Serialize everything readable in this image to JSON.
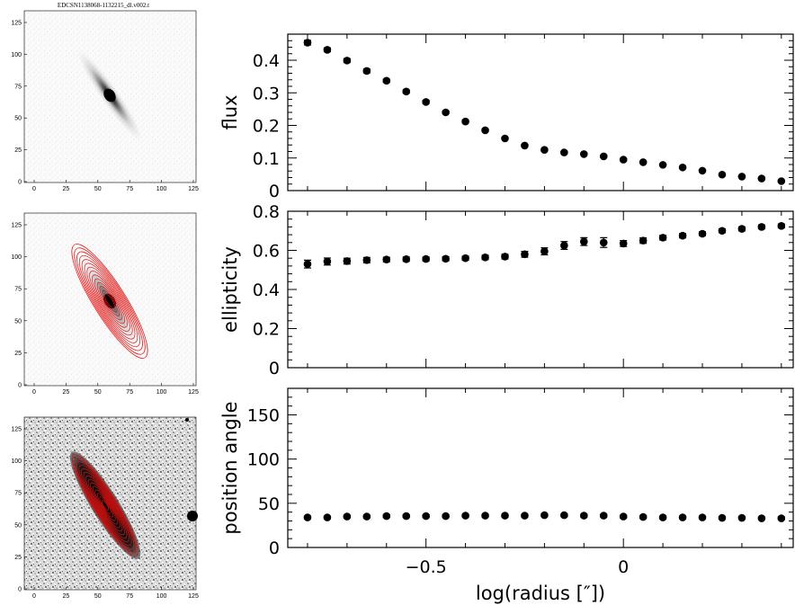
{
  "image_title": "EDCSN1138068-1132215_dl.v002.t",
  "image_panels": [
    {
      "name": "galaxy-image",
      "xticks": [
        "0",
        "25",
        "50",
        "75",
        "100",
        "125"
      ],
      "yticks": [
        "0",
        "25",
        "50",
        "75",
        "100",
        "125"
      ]
    },
    {
      "name": "contour-overlay",
      "xticks": [
        "0",
        "25",
        "50",
        "75",
        "100",
        "125"
      ],
      "yticks": [
        "0",
        "25",
        "50",
        "75",
        "100",
        "125"
      ]
    },
    {
      "name": "residual-image",
      "xticks": [
        "0",
        "25",
        "50",
        "75",
        "100",
        "125"
      ],
      "yticks": [
        "0",
        "25",
        "50",
        "75",
        "100",
        "125"
      ]
    }
  ],
  "colors": {
    "contour": "#e01010",
    "points": "#000000"
  },
  "chart_data": [
    {
      "type": "scatter",
      "ylabel": "flux",
      "xlabel": "",
      "xlim": [
        -0.85,
        0.43
      ],
      "ylim": [
        0,
        0.48
      ],
      "yticks": [
        "0",
        "0.1",
        "0.2",
        "0.3",
        "0.4"
      ],
      "ytick_values": [
        0,
        0.1,
        0.2,
        0.3,
        0.4
      ],
      "x": [
        -0.8,
        -0.75,
        -0.7,
        -0.65,
        -0.6,
        -0.55,
        -0.5,
        -0.45,
        -0.4,
        -0.35,
        -0.3,
        -0.25,
        -0.2,
        -0.15,
        -0.1,
        -0.05,
        0.0,
        0.05,
        0.1,
        0.15,
        0.2,
        0.25,
        0.3,
        0.35,
        0.4
      ],
      "y": [
        0.454,
        0.432,
        0.399,
        0.367,
        0.337,
        0.304,
        0.272,
        0.24,
        0.212,
        0.185,
        0.16,
        0.138,
        0.125,
        0.117,
        0.112,
        0.105,
        0.095,
        0.087,
        0.079,
        0.071,
        0.061,
        0.049,
        0.043,
        0.037,
        0.029
      ],
      "yerr": [
        0.007,
        0.006,
        0.006,
        0.006,
        0.005,
        0.005,
        0.005,
        0.004,
        0.004,
        0.004,
        0.003,
        0.003,
        0.003,
        0.003,
        0.003,
        0.003,
        0.002,
        0.002,
        0.002,
        0.002,
        0.002,
        0.002,
        0.002,
        0.002,
        0.002
      ]
    },
    {
      "type": "scatter",
      "ylabel": "ellipticity",
      "xlabel": "",
      "xlim": [
        -0.85,
        0.43
      ],
      "ylim": [
        0,
        0.8
      ],
      "yticks": [
        "0",
        "0.2",
        "0.4",
        "0.6",
        "0.8"
      ],
      "ytick_values": [
        0,
        0.2,
        0.4,
        0.6,
        0.8
      ],
      "x": [
        -0.8,
        -0.75,
        -0.7,
        -0.65,
        -0.6,
        -0.55,
        -0.5,
        -0.45,
        -0.4,
        -0.35,
        -0.3,
        -0.25,
        -0.2,
        -0.15,
        -0.1,
        -0.05,
        0.0,
        0.05,
        0.1,
        0.15,
        0.2,
        0.25,
        0.3,
        0.35,
        0.4
      ],
      "y": [
        0.53,
        0.543,
        0.545,
        0.55,
        0.553,
        0.555,
        0.556,
        0.557,
        0.56,
        0.564,
        0.568,
        0.58,
        0.595,
        0.625,
        0.645,
        0.64,
        0.635,
        0.65,
        0.665,
        0.675,
        0.685,
        0.7,
        0.71,
        0.72,
        0.725
      ],
      "yerr": [
        0.02,
        0.018,
        0.015,
        0.014,
        0.012,
        0.011,
        0.01,
        0.01,
        0.01,
        0.011,
        0.012,
        0.015,
        0.018,
        0.02,
        0.02,
        0.025,
        0.015,
        0.014,
        0.012,
        0.011,
        0.01,
        0.01,
        0.01,
        0.01,
        0.01
      ]
    },
    {
      "type": "scatter",
      "ylabel": "position angle",
      "xlabel": "log(radius [″])",
      "xlim": [
        -0.85,
        0.43
      ],
      "ylim": [
        0,
        180
      ],
      "yticks": [
        "0",
        "50",
        "100",
        "150"
      ],
      "ytick_values": [
        0,
        50,
        100,
        150
      ],
      "xticks": [
        "−0.5",
        "0"
      ],
      "xtick_values": [
        -0.5,
        0
      ],
      "x": [
        -0.8,
        -0.75,
        -0.7,
        -0.65,
        -0.6,
        -0.55,
        -0.5,
        -0.45,
        -0.4,
        -0.35,
        -0.3,
        -0.25,
        -0.2,
        -0.15,
        -0.1,
        -0.05,
        0.0,
        0.05,
        0.1,
        0.15,
        0.2,
        0.25,
        0.3,
        0.35,
        0.4
      ],
      "y": [
        34,
        34,
        35,
        35,
        35.5,
        35.5,
        35.5,
        35.5,
        36,
        36,
        36,
        36,
        36.5,
        36.5,
        36,
        36,
        35,
        34.5,
        34,
        34,
        34,
        33.5,
        33.5,
        33,
        33
      ],
      "yerr": [
        1.5,
        1.5,
        1.5,
        1.5,
        1.5,
        1.5,
        1.5,
        1.5,
        1.5,
        1.5,
        1.5,
        1.5,
        1.5,
        1.5,
        1.5,
        1.5,
        1.5,
        1.5,
        1.5,
        1.5,
        1.5,
        1.5,
        1.5,
        1.5,
        1.5
      ]
    }
  ]
}
